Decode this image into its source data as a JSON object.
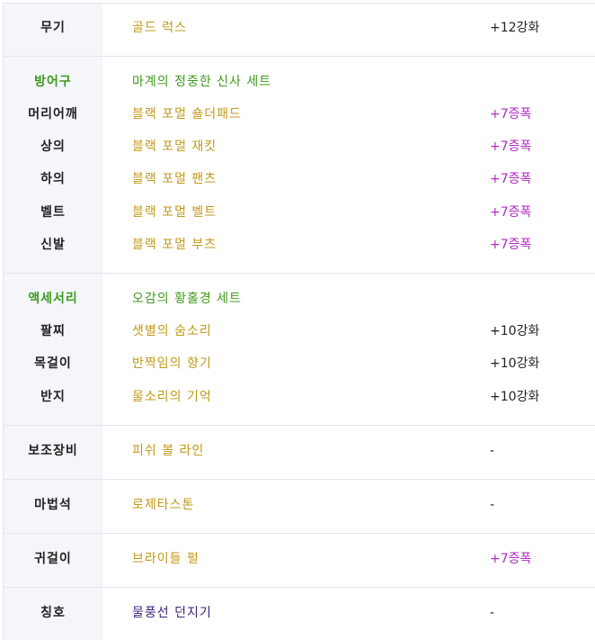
{
  "rows": {
    "weapon": {
      "label": "무기",
      "name": "골드 럭스",
      "value": "+12강화"
    },
    "armor_header": {
      "label": "방어구",
      "name": "마계의 정중한 신사 세트"
    },
    "shoulder": {
      "label": "머리어깨",
      "name": "블랙 포멀 숄더패드",
      "value": "+7증폭"
    },
    "top": {
      "label": "상의",
      "name": "블랙 포멀 재킷",
      "value": "+7증폭"
    },
    "bottom": {
      "label": "하의",
      "name": "블랙 포멀 팬츠",
      "value": "+7증폭"
    },
    "belt": {
      "label": "벨트",
      "name": "블랙 포멀 벨트",
      "value": "+7증폭"
    },
    "shoes": {
      "label": "신발",
      "name": "블랙 포멀 부츠",
      "value": "+7증폭"
    },
    "accessory_header": {
      "label": "액세서리",
      "name": "오감의 황홀경 세트"
    },
    "bracelet": {
      "label": "팔찌",
      "name": "샛별의 숨소리",
      "value": "+10강화"
    },
    "necklace": {
      "label": "목걸이",
      "name": "반짝임의 향기",
      "value": "+10강화"
    },
    "ring": {
      "label": "반지",
      "name": "물소리의 기억",
      "value": "+10강화"
    },
    "subequip": {
      "label": "보조장비",
      "name": "피쉬 볼 라인",
      "value": "-"
    },
    "magicstone": {
      "label": "마법석",
      "name": "로제타스톤",
      "value": "-"
    },
    "earring": {
      "label": "귀걸이",
      "name": "브라이들 펄",
      "value": "+7증폭"
    },
    "title": {
      "label": "칭호",
      "name": "물풍선 던지기",
      "value": "-"
    }
  },
  "colors": {
    "gold_item": "#c29a18",
    "set_green": "#3e9a1c",
    "amplify_pink": "#b02ac0",
    "title_purple": "#3c1f7a",
    "label_bg": "#f4f6fa"
  }
}
